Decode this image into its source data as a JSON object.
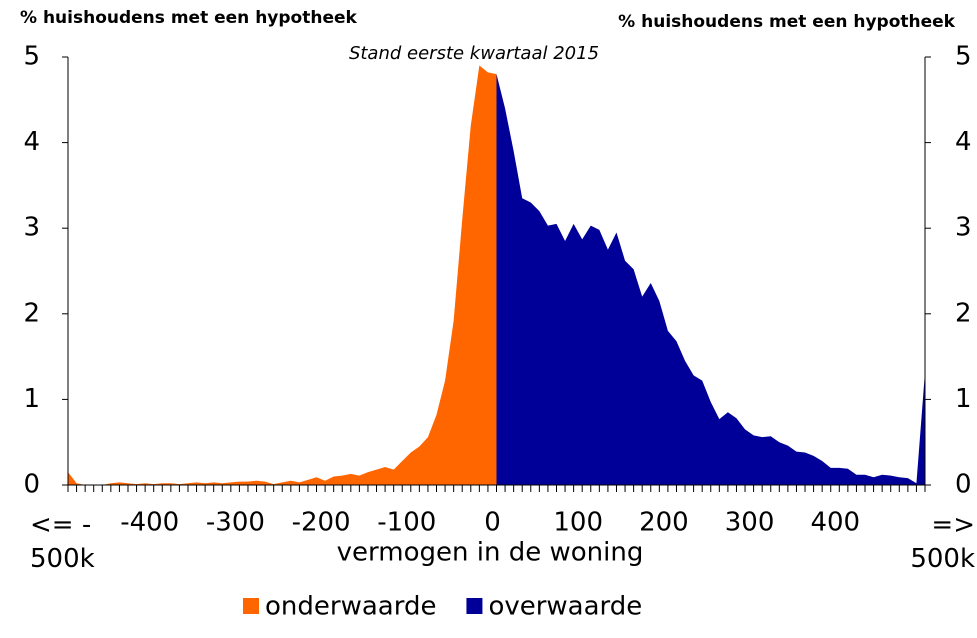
{
  "chart_data": {
    "type": "area",
    "ylabel": "% huishoudens met een hypotheek",
    "y2label": "% huishoudens met een hypotheek",
    "subtitle": "Stand eerste kwartaal 2015",
    "xlabel": "vermogen in de woning",
    "x": [
      -500,
      -490,
      -480,
      -470,
      -460,
      -450,
      -440,
      -430,
      -420,
      -410,
      -400,
      -390,
      -380,
      -370,
      -360,
      -350,
      -340,
      -330,
      -320,
      -310,
      -300,
      -290,
      -280,
      -270,
      -260,
      -250,
      -240,
      -230,
      -220,
      -210,
      -200,
      -190,
      -180,
      -170,
      -160,
      -150,
      -140,
      -130,
      -120,
      -110,
      -100,
      -90,
      -80,
      -70,
      -60,
      -50,
      -40,
      -30,
      -20,
      -10,
      0,
      10,
      20,
      30,
      40,
      50,
      60,
      70,
      80,
      90,
      100,
      110,
      120,
      130,
      140,
      150,
      160,
      170,
      180,
      190,
      200,
      210,
      220,
      230,
      240,
      250,
      260,
      270,
      280,
      290,
      300,
      310,
      320,
      330,
      340,
      350,
      360,
      370,
      380,
      390,
      400,
      410,
      420,
      430,
      440,
      450,
      460,
      470,
      480,
      490,
      500
    ],
    "series": [
      {
        "name": "onderwaarde",
        "color": "#ff6600",
        "values": [
          0.15,
          0.02,
          0,
          0,
          0,
          0.02,
          0.03,
          0.02,
          0.01,
          0.02,
          0.01,
          0.02,
          0.02,
          0.01,
          0.02,
          0.03,
          0.02,
          0.03,
          0.02,
          0.03,
          0.04,
          0.04,
          0.05,
          0.04,
          0.01,
          0.03,
          0.05,
          0.03,
          0.06,
          0.09,
          0.05,
          0.1,
          0.11,
          0.13,
          0.11,
          0.15,
          0.18,
          0.21,
          0.18,
          0.28,
          0.38,
          0.45,
          0.56,
          0.82,
          1.22,
          1.92,
          3.1,
          4.2,
          4.9,
          4.82,
          4.8,
          null,
          null,
          null,
          null,
          null,
          null,
          null,
          null,
          null,
          null,
          null,
          null,
          null,
          null,
          null,
          null,
          null,
          null,
          null,
          null,
          null,
          null,
          null,
          null,
          null,
          null,
          null,
          null,
          null,
          null,
          null,
          null,
          null,
          null,
          null,
          null,
          null,
          null,
          null,
          null,
          null,
          null,
          null,
          null,
          null,
          null,
          null,
          null,
          null,
          null
        ]
      },
      {
        "name": "overwaarde",
        "color": "#000099",
        "values": [
          null,
          null,
          null,
          null,
          null,
          null,
          null,
          null,
          null,
          null,
          null,
          null,
          null,
          null,
          null,
          null,
          null,
          null,
          null,
          null,
          null,
          null,
          null,
          null,
          null,
          null,
          null,
          null,
          null,
          null,
          null,
          null,
          null,
          null,
          null,
          null,
          null,
          null,
          null,
          null,
          null,
          null,
          null,
          null,
          null,
          null,
          null,
          null,
          null,
          null,
          4.8,
          4.4,
          3.9,
          3.35,
          3.3,
          3.2,
          3.03,
          3.05,
          2.85,
          3.05,
          2.87,
          3.03,
          2.98,
          2.75,
          2.95,
          2.62,
          2.52,
          2.2,
          2.36,
          2.15,
          1.8,
          1.68,
          1.45,
          1.28,
          1.22,
          0.97,
          0.77,
          0.85,
          0.78,
          0.65,
          0.58,
          0.56,
          0.57,
          0.5,
          0.46,
          0.39,
          0.38,
          0.34,
          0.28,
          0.2,
          0.2,
          0.19,
          0.12,
          0.12,
          0.09,
          0.12,
          0.11,
          0.09,
          0.08,
          0.02,
          1.32
        ]
      }
    ],
    "xlim": [
      -500,
      500
    ],
    "xticks": [
      {
        "value": -500,
        "label": "<= - 500k"
      },
      -400,
      -300,
      -200,
      -100,
      0,
      100,
      200,
      300,
      400,
      {
        "value": 500,
        "label": "=> 500k"
      }
    ],
    "ylim": [
      0,
      5
    ],
    "yticks": [
      0,
      1,
      2,
      3,
      4,
      5
    ],
    "y2lim": [
      0,
      5
    ],
    "y2ticks": [
      0,
      1,
      2,
      3,
      4,
      5
    ],
    "legend": "bottom"
  }
}
